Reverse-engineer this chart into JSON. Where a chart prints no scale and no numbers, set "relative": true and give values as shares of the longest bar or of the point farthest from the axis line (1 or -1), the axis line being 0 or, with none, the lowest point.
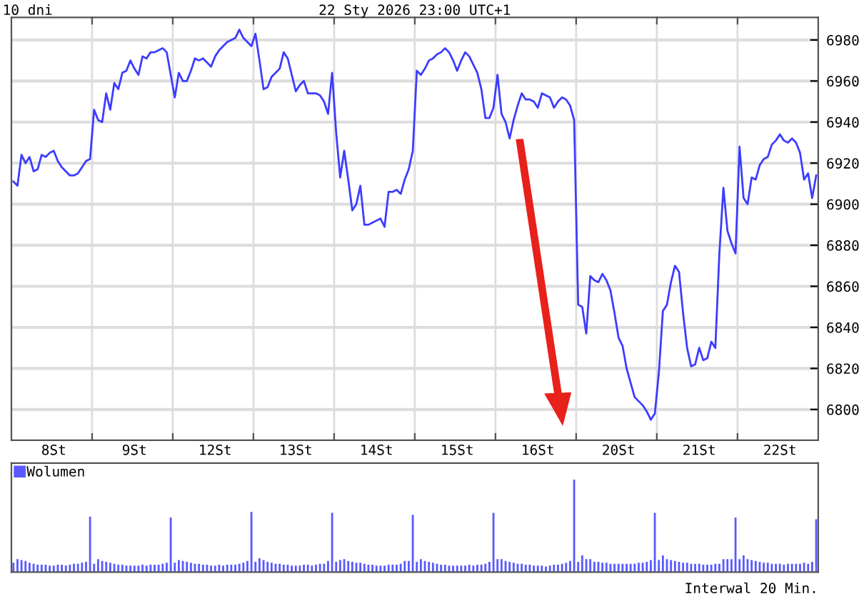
{
  "chart_data": [
    {
      "type": "line",
      "title": "10 dni",
      "subtitle": "22 Sty 2026 23:00 UTC+1",
      "annotations": [
        "Interwal 20 Min."
      ],
      "categories": [
        null,
        null,
        null,
        null,
        null,
        null,
        null,
        null,
        null,
        null,
        "8St",
        null,
        null,
        null,
        null,
        null,
        null,
        null,
        null,
        null,
        null,
        null,
        null,
        null,
        null,
        null,
        null,
        null,
        null,
        null,
        "9St",
        null,
        null,
        null,
        null,
        null,
        null,
        null,
        null,
        null,
        null,
        null,
        null,
        null,
        null,
        null,
        null,
        null,
        null,
        null,
        "12St",
        null,
        null,
        null,
        null,
        null,
        null,
        null,
        null,
        null,
        null,
        null,
        null,
        null,
        null,
        null,
        null,
        null,
        null,
        null,
        "13St",
        null,
        null,
        null,
        null,
        null,
        null,
        null,
        null,
        null,
        null,
        null,
        null,
        null,
        null,
        null,
        null,
        null,
        null,
        null,
        "14St",
        null,
        null,
        null,
        null,
        null,
        null,
        null,
        null,
        null,
        null,
        null,
        null,
        null,
        null,
        null,
        null,
        null,
        null,
        null,
        "15St",
        null,
        null,
        null,
        null,
        null,
        null,
        null,
        null,
        null,
        null,
        null,
        null,
        null,
        null,
        null,
        null,
        null,
        null,
        null,
        "16St",
        null,
        null,
        null,
        null,
        null,
        null,
        null,
        null,
        null,
        null,
        null,
        null,
        null,
        null,
        null,
        null,
        null,
        null,
        null,
        "20St",
        null,
        null,
        null,
        null,
        null,
        null,
        null,
        null,
        null,
        null,
        null,
        null,
        null,
        null,
        null,
        null,
        null,
        null,
        null,
        "21St",
        null,
        null,
        null,
        null,
        null,
        null,
        null,
        null,
        null,
        null,
        null,
        null,
        null,
        null,
        null,
        null,
        null,
        null,
        null,
        "22St",
        null,
        null,
        null,
        null,
        null,
        null,
        null,
        null,
        null
      ],
      "series": [
        {
          "color": "#3c3cff",
          "values": [
            6911,
            6909,
            6924,
            6920,
            6923,
            6916,
            6917,
            6924,
            6923,
            6925,
            6926,
            6921,
            6918,
            6916,
            6914,
            6914,
            6915,
            6918,
            6921,
            6922,
            6946,
            6941,
            6940,
            6954,
            6946,
            6959,
            6956,
            6964,
            6965,
            6970,
            6966,
            6963,
            6972,
            6971,
            6974,
            6974,
            6975,
            6976,
            6974,
            6963,
            6952,
            6964,
            6960,
            6960,
            6965,
            6971,
            6970,
            6971,
            6969,
            6967,
            6972,
            6975,
            6977,
            6979,
            6980,
            6981,
            6985,
            6981,
            6979,
            6977,
            6983,
            6970,
            6956,
            6957,
            6962,
            6964,
            6966,
            6974,
            6971,
            6963,
            6955,
            6958,
            6960,
            6954,
            6954,
            6954,
            6953,
            6950,
            6944,
            6964,
            6935,
            6913,
            6926,
            6912,
            6897,
            6900,
            6909,
            6890,
            6890,
            6891,
            6892,
            6893,
            6889,
            6906,
            6906,
            6907,
            6905,
            6912,
            6917,
            6926,
            6965,
            6963,
            6966,
            6970,
            6971,
            6973,
            6974,
            6976,
            6974,
            6970,
            6965,
            6970,
            6974,
            6972,
            6968,
            6964,
            6956,
            6942,
            6942,
            6947,
            6963,
            6944,
            6940,
            6932,
            6941,
            6948,
            6954,
            6951,
            6951,
            6950,
            6947,
            6954,
            6953,
            6952,
            6947,
            6950,
            6952,
            6951,
            6948,
            6941,
            6851,
            6850,
            6837,
            6865,
            6863,
            6862,
            6866,
            6863,
            6858,
            6847,
            6835,
            6831,
            6820,
            6813,
            6806,
            6804,
            6802,
            6799,
            6795,
            6798,
            6818,
            6848,
            6851,
            6862,
            6870,
            6867,
            6847,
            6830,
            6821,
            6822,
            6830,
            6824,
            6825,
            6833,
            6830,
            6876,
            6908,
            6887,
            6881,
            6876,
            6928,
            6903,
            6900,
            6913,
            6912,
            6919,
            6922,
            6923,
            6929,
            6931,
            6934,
            6931,
            6930,
            6932,
            6930,
            6925,
            6912,
            6915,
            6903,
            6914
          ]
        }
      ],
      "ylim": [
        6785,
        6991
      ],
      "yticks": [
        6800,
        6820,
        6840,
        6860,
        6880,
        6900,
        6920,
        6940,
        6960,
        6980
      ],
      "grid": true,
      "marker": "none",
      "line_style": "solid"
    },
    {
      "type": "bar",
      "relative": true,
      "legend": "top left",
      "categories": [
        null,
        null,
        null,
        null,
        null,
        null,
        null,
        null,
        null,
        null,
        null,
        null,
        null,
        null,
        null,
        null,
        null,
        null,
        null,
        null,
        null,
        null,
        null,
        null,
        null,
        null,
        null,
        null,
        null,
        null,
        null,
        null,
        null,
        null,
        null,
        null,
        null,
        null,
        null,
        null,
        null,
        null,
        null,
        null,
        null,
        null,
        null,
        null,
        null,
        null,
        null,
        null,
        null,
        null,
        null,
        null,
        null,
        null,
        null,
        null,
        null,
        null,
        null,
        null,
        null,
        null,
        null,
        null,
        null,
        null,
        null,
        null,
        null,
        null,
        null,
        null,
        null,
        null,
        null,
        null,
        null,
        null,
        null,
        null,
        null,
        null,
        null,
        null,
        null,
        null,
        null,
        null,
        null,
        null,
        null,
        null,
        null,
        null,
        null,
        null,
        null,
        null,
        null,
        null,
        null,
        null,
        null,
        null,
        null,
        null,
        null,
        null,
        null,
        null,
        null,
        null,
        null,
        null,
        null,
        null,
        null,
        null,
        null,
        null,
        null,
        null,
        null,
        null,
        null,
        null,
        null,
        null,
        null,
        null,
        null,
        null,
        null,
        null,
        null,
        null,
        null,
        null,
        null,
        null,
        null,
        null,
        null,
        null,
        null,
        null,
        null,
        null,
        null,
        null,
        null,
        null,
        null,
        null,
        null,
        null,
        null,
        null,
        null,
        null,
        null,
        null,
        null,
        null,
        null,
        null,
        null,
        null,
        null,
        null,
        null,
        null,
        null,
        null,
        null,
        null,
        null,
        null,
        null,
        null,
        null,
        null,
        null,
        null,
        null,
        null,
        null,
        null,
        null,
        null,
        null,
        null,
        null,
        null,
        null,
        null
      ],
      "series": [
        {
          "name": "Wolumen",
          "color": "#5a5aff",
          "values": [
            0.1,
            0.14,
            0.13,
            0.12,
            0.1,
            0.09,
            0.08,
            0.08,
            0.08,
            0.07,
            0.07,
            0.08,
            0.08,
            0.07,
            0.08,
            0.09,
            0.09,
            0.1,
            0.11,
            0.6,
            0.09,
            0.14,
            0.12,
            0.11,
            0.1,
            0.09,
            0.08,
            0.08,
            0.07,
            0.07,
            0.07,
            0.07,
            0.08,
            0.07,
            0.08,
            0.08,
            0.08,
            0.09,
            0.1,
            0.59,
            0.1,
            0.13,
            0.12,
            0.11,
            0.1,
            0.09,
            0.09,
            0.08,
            0.08,
            0.07,
            0.07,
            0.08,
            0.07,
            0.08,
            0.08,
            0.08,
            0.09,
            0.1,
            0.12,
            0.65,
            0.11,
            0.15,
            0.13,
            0.11,
            0.1,
            0.09,
            0.09,
            0.08,
            0.08,
            0.07,
            0.07,
            0.07,
            0.08,
            0.08,
            0.07,
            0.08,
            0.09,
            0.09,
            0.12,
            0.64,
            0.11,
            0.13,
            0.14,
            0.12,
            0.11,
            0.1,
            0.1,
            0.09,
            0.08,
            0.08,
            0.07,
            0.07,
            0.07,
            0.08,
            0.08,
            0.08,
            0.09,
            0.12,
            0.12,
            0.62,
            0.11,
            0.14,
            0.12,
            0.11,
            0.1,
            0.09,
            0.08,
            0.08,
            0.07,
            0.07,
            0.07,
            0.07,
            0.07,
            0.08,
            0.07,
            0.08,
            0.08,
            0.09,
            0.11,
            0.64,
            0.14,
            0.14,
            0.12,
            0.11,
            0.1,
            0.09,
            0.09,
            0.08,
            0.08,
            0.07,
            0.07,
            0.07,
            0.06,
            0.07,
            0.08,
            0.08,
            0.09,
            0.1,
            0.12,
            1,
            0.11,
            0.18,
            0.14,
            0.14,
            0.11,
            0.11,
            0.1,
            0.1,
            0.09,
            0.09,
            0.09,
            0.09,
            0.09,
            0.09,
            0.09,
            0.1,
            0.1,
            0.11,
            0.13,
            0.64,
            0.13,
            0.18,
            0.14,
            0.13,
            0.12,
            0.11,
            0.1,
            0.1,
            0.09,
            0.09,
            0.09,
            0.08,
            0.08,
            0.08,
            0.09,
            0.09,
            0.14,
            0.14,
            0.14,
            0.59,
            0.14,
            0.18,
            0.14,
            0.13,
            0.12,
            0.11,
            0.1,
            0.1,
            0.09,
            0.09,
            0.09,
            0.08,
            0.09,
            0.09,
            0.09,
            0.09,
            0.1,
            0.09,
            0.11,
            0.57
          ]
        }
      ]
    }
  ]
}
